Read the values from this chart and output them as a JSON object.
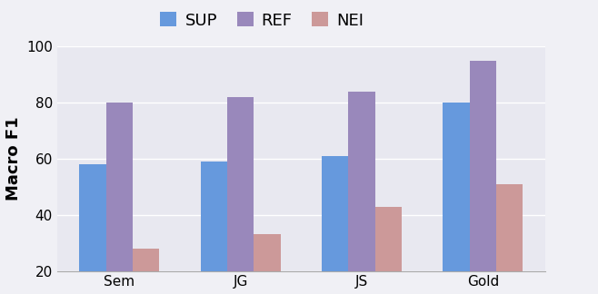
{
  "categories": [
    "Sem",
    "JG",
    "JS",
    "Gold"
  ],
  "series": {
    "SUP": [
      58,
      59,
      61,
      80
    ],
    "REF": [
      80,
      82,
      84,
      95
    ],
    "NEI": [
      28,
      33,
      43,
      51
    ]
  },
  "colors": {
    "SUP": "#6699DD",
    "REF": "#9988BB",
    "NEI": "#CC9999"
  },
  "ylabel": "Macro F1",
  "ylim": [
    20,
    100
  ],
  "yticks": [
    20,
    40,
    60,
    80,
    100
  ],
  "legend_labels": [
    "SUP",
    "REF",
    "NEI"
  ],
  "bar_width": 0.22,
  "background_color": "#f0f0f5",
  "plot_bg_color": "#e8e8f0",
  "grid_color": "#ffffff",
  "label_fontsize": 13,
  "tick_fontsize": 11,
  "legend_fontsize": 13
}
